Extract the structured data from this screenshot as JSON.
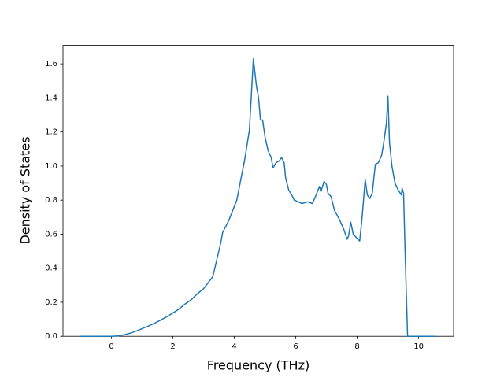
{
  "chart_data": {
    "type": "line",
    "xlabel": "Frequency (THz)",
    "ylabel": "Density of States",
    "x": [
      -1.0,
      0,
      0.2,
      0.4,
      0.6,
      0.8,
      1.0,
      1.2,
      1.4,
      1.6,
      1.8,
      2.0,
      2.2,
      2.4,
      2.6,
      2.8,
      3.0,
      3.3,
      3.56,
      3.62,
      3.82,
      4.08,
      4.33,
      4.49,
      4.62,
      4.72,
      4.79,
      4.85,
      4.92,
      5.0,
      5.1,
      5.2,
      5.26,
      5.36,
      5.46,
      5.54,
      5.62,
      5.67,
      5.77,
      5.87,
      5.95,
      6.08,
      6.2,
      6.38,
      6.54,
      6.64,
      6.77,
      6.82,
      6.92,
      7.0,
      7.05,
      7.15,
      7.26,
      7.41,
      7.56,
      7.67,
      7.72,
      7.79,
      7.87,
      7.97,
      8.08,
      8.15,
      8.26,
      8.33,
      8.41,
      8.49,
      8.59,
      8.69,
      8.79,
      8.85,
      8.95,
      9.0,
      9.05,
      9.13,
      9.23,
      9.33,
      9.44,
      9.46,
      9.51,
      9.56,
      9.64,
      10.56
    ],
    "series": [
      {
        "name": "DOS",
        "color": "#1f77b4",
        "values": [
          0,
          0,
          0.002,
          0.008,
          0.018,
          0.03,
          0.045,
          0.06,
          0.076,
          0.095,
          0.115,
          0.137,
          0.16,
          0.19,
          0.215,
          0.25,
          0.28,
          0.35,
          0.55,
          0.61,
          0.68,
          0.8,
          1.03,
          1.21,
          1.63,
          1.47,
          1.4,
          1.27,
          1.27,
          1.17,
          1.09,
          1.05,
          0.99,
          1.02,
          1.03,
          1.05,
          1.02,
          0.93,
          0.86,
          0.83,
          0.8,
          0.79,
          0.78,
          0.79,
          0.78,
          0.82,
          0.88,
          0.85,
          0.91,
          0.89,
          0.84,
          0.82,
          0.74,
          0.69,
          0.63,
          0.57,
          0.59,
          0.67,
          0.6,
          0.58,
          0.56,
          0.68,
          0.92,
          0.83,
          0.81,
          0.84,
          1.01,
          1.02,
          1.06,
          1.12,
          1.25,
          1.41,
          1.14,
          1.0,
          0.9,
          0.86,
          0.83,
          0.87,
          0.84,
          0.49,
          0,
          0
        ]
      }
    ],
    "xlim": [
      -1.578,
      11.138
    ],
    "ylim": [
      0,
      1.709
    ],
    "xticks": [
      0,
      2,
      4,
      6,
      8,
      10
    ],
    "yticks": [
      {
        "value": 0,
        "label": "0.0"
      },
      0.2,
      0.4,
      0.6,
      0.8,
      {
        "value": 1,
        "label": "1.0"
      },
      1.2,
      1.4,
      1.6
    ]
  }
}
